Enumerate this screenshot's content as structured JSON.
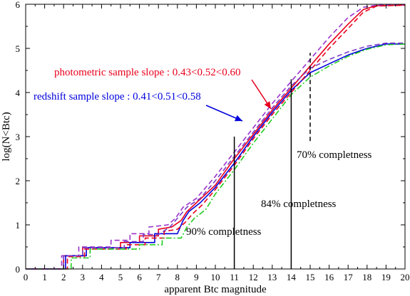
{
  "chart_data": {
    "type": "line",
    "xlabel": "apparent Btc magnitude",
    "ylabel": "log(N<Btc)",
    "xlim": [
      0,
      20
    ],
    "ylim": [
      0,
      6
    ],
    "x_ticks": [
      0,
      1,
      2,
      3,
      4,
      5,
      6,
      7,
      8,
      9,
      10,
      11,
      12,
      13,
      14,
      15,
      16,
      17,
      18,
      19,
      20
    ],
    "y_ticks": [
      0,
      1,
      2,
      3,
      4,
      5,
      6
    ],
    "grid": false,
    "legend": "none",
    "series": [
      {
        "color": "#e8001c",
        "dash": "solid",
        "points": [
          [
            0,
            0
          ],
          [
            2.0,
            0
          ],
          [
            2.0,
            0.3
          ],
          [
            3.0,
            0.3
          ],
          [
            3.0,
            0.48
          ],
          [
            5.0,
            0.48
          ],
          [
            5.0,
            0.6
          ],
          [
            6.0,
            0.6
          ],
          [
            6.0,
            0.75
          ],
          [
            7.0,
            0.75
          ],
          [
            7.0,
            0.9
          ],
          [
            7.7,
            0.95
          ],
          [
            8.2,
            1.1
          ],
          [
            8.5,
            1.3
          ],
          [
            9.0,
            1.5
          ],
          [
            10.0,
            1.9
          ],
          [
            11.0,
            2.5
          ],
          [
            12.0,
            3.05
          ],
          [
            13.0,
            3.6
          ],
          [
            14.0,
            4.1
          ],
          [
            15.0,
            4.6
          ],
          [
            16.0,
            5.1
          ],
          [
            17.0,
            5.55
          ],
          [
            17.8,
            5.88
          ],
          [
            18.5,
            5.97
          ],
          [
            20.0,
            5.98
          ]
        ]
      },
      {
        "color": "#0000dd",
        "dash": "solid",
        "points": [
          [
            0,
            0
          ],
          [
            2.1,
            0
          ],
          [
            2.1,
            0.3
          ],
          [
            3.2,
            0.3
          ],
          [
            3.2,
            0.48
          ],
          [
            5.5,
            0.48
          ],
          [
            5.5,
            0.6
          ],
          [
            6.8,
            0.6
          ],
          [
            6.8,
            0.8
          ],
          [
            8.0,
            0.8
          ],
          [
            8.3,
            1.1
          ],
          [
            8.6,
            1.3
          ],
          [
            9.2,
            1.5
          ],
          [
            10.0,
            1.85
          ],
          [
            11.0,
            2.4
          ],
          [
            12.0,
            3.0
          ],
          [
            13.0,
            3.55
          ],
          [
            14.0,
            4.05
          ],
          [
            15.0,
            4.45
          ],
          [
            16.0,
            4.65
          ],
          [
            17.0,
            4.85
          ],
          [
            18.0,
            5.0
          ],
          [
            19.0,
            5.1
          ],
          [
            20.0,
            5.1
          ]
        ]
      },
      {
        "color": "#9933cc",
        "dash": "dashed",
        "points": [
          [
            0,
            0
          ],
          [
            1.9,
            0
          ],
          [
            1.9,
            0.3
          ],
          [
            2.8,
            0.3
          ],
          [
            2.8,
            0.5
          ],
          [
            4.5,
            0.5
          ],
          [
            4.5,
            0.65
          ],
          [
            5.5,
            0.65
          ],
          [
            5.5,
            0.8
          ],
          [
            6.5,
            0.8
          ],
          [
            6.5,
            0.95
          ],
          [
            7.5,
            1.0
          ],
          [
            7.9,
            1.15
          ],
          [
            8.3,
            1.4
          ],
          [
            9.0,
            1.6
          ],
          [
            10.0,
            2.1
          ],
          [
            11.0,
            2.65
          ],
          [
            12.0,
            3.2
          ],
          [
            13.0,
            3.75
          ],
          [
            14.0,
            4.25
          ],
          [
            15.0,
            4.75
          ],
          [
            16.0,
            5.25
          ],
          [
            17.0,
            5.7
          ],
          [
            17.8,
            5.93
          ],
          [
            18.5,
            5.98
          ],
          [
            20.0,
            5.98
          ]
        ]
      },
      {
        "color": "#e8001c",
        "dash": "dashed",
        "points": [
          [
            0,
            0
          ],
          [
            2.2,
            0
          ],
          [
            2.2,
            0.28
          ],
          [
            3.1,
            0.28
          ],
          [
            3.1,
            0.45
          ],
          [
            5.3,
            0.45
          ],
          [
            5.3,
            0.55
          ],
          [
            6.3,
            0.55
          ],
          [
            6.3,
            0.7
          ],
          [
            7.3,
            0.7
          ],
          [
            7.3,
            0.85
          ],
          [
            8.0,
            0.9
          ],
          [
            8.4,
            1.05
          ],
          [
            8.8,
            1.25
          ],
          [
            9.3,
            1.45
          ],
          [
            10.0,
            1.8
          ],
          [
            11.0,
            2.35
          ],
          [
            12.0,
            2.95
          ],
          [
            13.0,
            3.5
          ],
          [
            14.0,
            4.0
          ],
          [
            15.0,
            4.5
          ],
          [
            16.0,
            5.0
          ],
          [
            17.0,
            5.45
          ],
          [
            17.8,
            5.82
          ],
          [
            18.5,
            5.96
          ],
          [
            20.0,
            5.98
          ]
        ]
      },
      {
        "color": "#22cc22",
        "dash": "dashdot",
        "points": [
          [
            0,
            0
          ],
          [
            2.4,
            0
          ],
          [
            2.4,
            0.25
          ],
          [
            3.4,
            0.25
          ],
          [
            3.4,
            0.45
          ],
          [
            6.0,
            0.45
          ],
          [
            6.0,
            0.55
          ],
          [
            7.2,
            0.55
          ],
          [
            7.2,
            0.7
          ],
          [
            8.2,
            0.7
          ],
          [
            8.5,
            0.95
          ],
          [
            8.9,
            1.15
          ],
          [
            9.5,
            1.35
          ],
          [
            10.0,
            1.7
          ],
          [
            11.0,
            2.25
          ],
          [
            12.0,
            2.85
          ],
          [
            13.0,
            3.4
          ],
          [
            14.0,
            3.95
          ],
          [
            15.0,
            4.35
          ],
          [
            16.0,
            4.6
          ],
          [
            17.0,
            4.82
          ],
          [
            18.0,
            4.98
          ],
          [
            19.0,
            5.08
          ],
          [
            20.0,
            5.1
          ]
        ]
      },
      {
        "color": "#7a3cc8",
        "dash": "dashed",
        "points": [
          [
            0,
            0
          ],
          [
            2.0,
            0
          ],
          [
            2.0,
            0.3
          ],
          [
            3.0,
            0.3
          ],
          [
            3.0,
            0.48
          ],
          [
            5.2,
            0.48
          ],
          [
            5.2,
            0.62
          ],
          [
            6.2,
            0.62
          ],
          [
            6.2,
            0.78
          ],
          [
            7.0,
            0.78
          ],
          [
            7.6,
            0.95
          ],
          [
            8.1,
            1.2
          ],
          [
            8.5,
            1.4
          ],
          [
            9.2,
            1.6
          ],
          [
            10.0,
            2.0
          ],
          [
            11.0,
            2.55
          ],
          [
            12.0,
            3.1
          ],
          [
            13.0,
            3.65
          ],
          [
            14.0,
            4.15
          ],
          [
            15.0,
            4.55
          ],
          [
            16.0,
            4.75
          ],
          [
            17.0,
            4.92
          ],
          [
            18.0,
            5.05
          ],
          [
            19.0,
            5.12
          ],
          [
            20.0,
            5.12
          ]
        ]
      }
    ],
    "annotations": {
      "photometric": {
        "text": "photometric sample slope : 0.43<0.52<0.60",
        "color": "#e8001c"
      },
      "redshift": {
        "text": "redshift sample slope : 0.41<0.51<0.58",
        "color": "#0000dd"
      },
      "c90": {
        "text": "90% completness",
        "x": 11,
        "line_y": [
          0,
          3.0
        ]
      },
      "c84": {
        "text": "84% completness",
        "x": 14,
        "line_y": [
          0,
          4.3
        ]
      },
      "c70": {
        "text": "70% completness",
        "x": 15,
        "line_y": [
          2.9,
          4.9
        ]
      }
    }
  }
}
